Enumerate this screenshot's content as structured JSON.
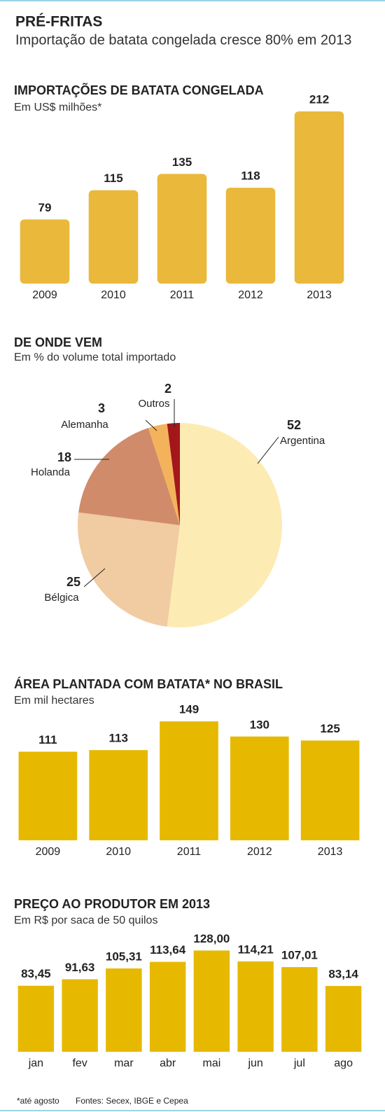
{
  "header": {
    "title": "PRÉ-FRITAS",
    "subtitle": "Importação de batata congelada cresce 80% em 2013"
  },
  "chart_data": [
    {
      "type": "bar",
      "title": "IMPORTAÇÕES DE BATATA CONGELADA",
      "subtitle": "Em US$ milhões*",
      "categories": [
        "2009",
        "2010",
        "2011",
        "2012",
        "2013"
      ],
      "values": [
        79,
        115,
        135,
        118,
        212
      ],
      "color": "#eab83a"
    },
    {
      "type": "pie",
      "title": "DE ONDE VEM",
      "subtitle": "Em % do volume total importado",
      "categories": [
        "Argentina",
        "Bélgica",
        "Holanda",
        "Alemanha",
        "Outros"
      ],
      "values": [
        52,
        25,
        18,
        3,
        2
      ],
      "colors": [
        "#fdebb4",
        "#f1cba2",
        "#d08c6a",
        "#f4b35a",
        "#a3171b"
      ]
    },
    {
      "type": "bar",
      "title": "ÁREA PLANTADA COM BATATA* NO BRASIL",
      "subtitle": "Em mil hectares",
      "categories": [
        "2009",
        "2010",
        "2011",
        "2012",
        "2013"
      ],
      "values": [
        111,
        113,
        149,
        130,
        125
      ],
      "color": "#e6b900"
    },
    {
      "type": "bar",
      "title": "PREÇO AO PRODUTOR EM 2013",
      "subtitle": "Em R$ por saca de 50 quilos",
      "categories": [
        "jan",
        "fev",
        "mar",
        "abr",
        "mai",
        "jun",
        "jul",
        "ago"
      ],
      "values": [
        83.45,
        91.63,
        105.31,
        113.64,
        128.0,
        114.21,
        107.01,
        83.14
      ],
      "value_labels": [
        "83,45",
        "91,63",
        "105,31",
        "113,64",
        "128,00",
        "114,21",
        "107,01",
        "83,14"
      ],
      "color": "#e6b900"
    }
  ],
  "footer": {
    "note": "*até agosto",
    "sources": "Fontes: Secex, IBGE e Cepea"
  }
}
